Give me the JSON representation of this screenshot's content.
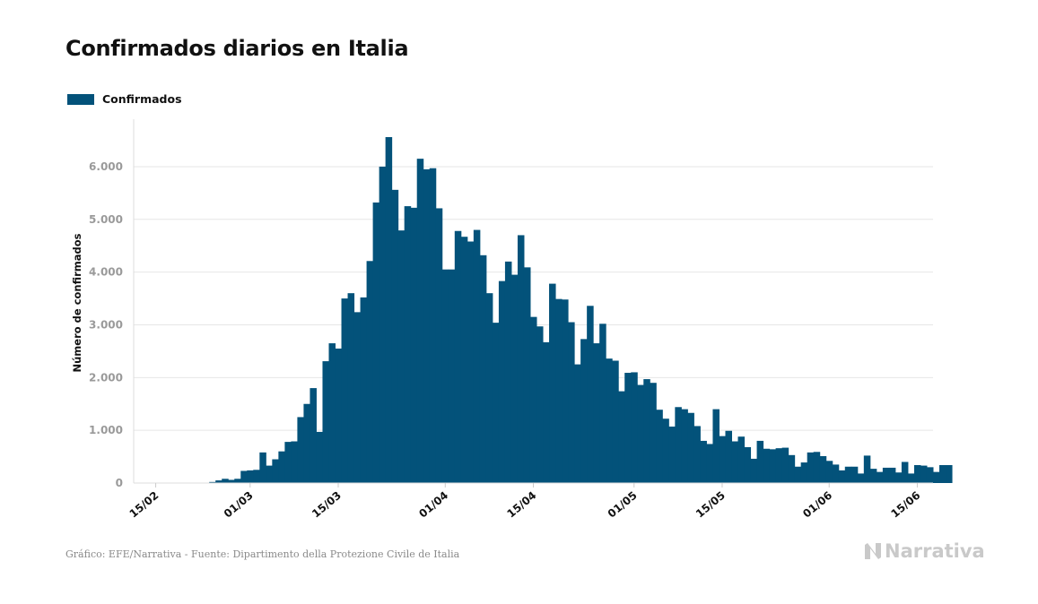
{
  "title": "Confirmados diarios en Italia",
  "legend": {
    "label": "Confirmados",
    "color": "#03527a"
  },
  "source": "Gráfico: EFE/Narrativa - Fuente: Dipartimento della Protezione Civile de Italia",
  "brand": {
    "name": "Narrativa",
    "icon": "narrativa-logo-icon",
    "color": "#c9c9c9"
  },
  "chart_data": {
    "type": "bar",
    "title": "Confirmados diarios en Italia",
    "xlabel": "",
    "ylabel": "Número de confirmados",
    "ylim": [
      0,
      6900
    ],
    "yticks": [
      0,
      1000,
      2000,
      3000,
      4000,
      5000,
      6000
    ],
    "ytick_labels": [
      "0",
      "1.000",
      "2.000",
      "3.000",
      "4.000",
      "5.000",
      "6.000"
    ],
    "grid": true,
    "legend_position": "top-left",
    "x_start": "2020-02-12",
    "x_end": "2020-06-18",
    "xtick_labels": [
      "15/02",
      "01/03",
      "15/03",
      "01/04",
      "15/04",
      "01/05",
      "15/05",
      "01/06",
      "15/06"
    ],
    "series": [
      {
        "name": "Confirmados",
        "color": "#03527a",
        "values": [
          0,
          0,
          0,
          0,
          0,
          0,
          0,
          0,
          0,
          0,
          0,
          0,
          20,
          50,
          80,
          60,
          80,
          230,
          240,
          250,
          580,
          330,
          450,
          600,
          780,
          790,
          1250,
          1500,
          1800,
          970,
          2310,
          2650,
          2550,
          3500,
          3600,
          3240,
          3520,
          4210,
          5320,
          6000,
          6560,
          5560,
          4790,
          5250,
          5220,
          6150,
          5950,
          5970,
          5210,
          4050,
          4050,
          4780,
          4670,
          4580,
          4800,
          4320,
          3600,
          3040,
          3830,
          4200,
          3950,
          4700,
          4090,
          3150,
          2970,
          2670,
          3780,
          3490,
          3480,
          3050,
          2250,
          2730,
          3360,
          2650,
          3020,
          2360,
          2320,
          1740,
          2090,
          2100,
          1860,
          1970,
          1900,
          1390,
          1220,
          1070,
          1440,
          1400,
          1330,
          1080,
          800,
          740,
          1400,
          890,
          990,
          790,
          880,
          680,
          460,
          800,
          650,
          640,
          660,
          670,
          530,
          310,
          390,
          580,
          590,
          510,
          420,
          350,
          240,
          310,
          310,
          180,
          520,
          270,
          210,
          290,
          290,
          200,
          400,
          180,
          340,
          330,
          300,
          210,
          340,
          340
        ]
      }
    ]
  }
}
